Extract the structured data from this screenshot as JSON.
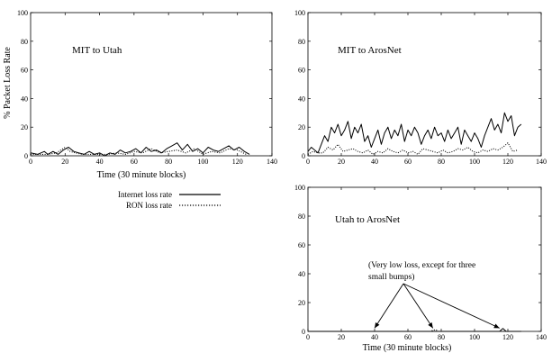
{
  "figure": {
    "legend": {
      "entries": [
        {
          "label": "Internet loss rate",
          "style": "solid"
        },
        {
          "label": "RON loss rate",
          "style": "dotted"
        }
      ]
    }
  },
  "chart_data": [
    {
      "type": "line",
      "title": "MIT to Utah",
      "xlabel": "Time (30 minute blocks)",
      "ylabel": "% Packet Loss Rate",
      "xlim": [
        0,
        140
      ],
      "ylim": [
        0,
        100
      ],
      "xticks": [
        "0",
        "20",
        "40",
        "60",
        "80",
        "100",
        "120",
        "140"
      ],
      "yticks": [
        "0",
        "20",
        "40",
        "60",
        "80",
        "100"
      ],
      "series": [
        {
          "name": "Internet loss rate",
          "style": "solid",
          "x": [
            0,
            4,
            8,
            10,
            13,
            16,
            19,
            22,
            25,
            28,
            31,
            34,
            37,
            40,
            43,
            46,
            49,
            52,
            55,
            58,
            61,
            64,
            67,
            70,
            73,
            76,
            79,
            82,
            85,
            88,
            91,
            94,
            97,
            100,
            103,
            106,
            109,
            112,
            115,
            118,
            121,
            124,
            127
          ],
          "values": [
            2,
            1,
            3,
            1,
            3,
            1,
            4,
            6,
            3,
            2,
            1,
            3,
            1,
            2,
            0,
            2,
            1,
            4,
            2,
            3,
            5,
            2,
            6,
            3,
            4,
            2,
            5,
            7,
            9,
            4,
            8,
            3,
            5,
            2,
            6,
            4,
            3,
            5,
            7,
            4,
            6,
            3,
            1
          ]
        },
        {
          "name": "RON loss rate",
          "style": "dotted",
          "x": [
            0,
            5,
            10,
            15,
            20,
            23,
            26,
            30,
            35,
            40,
            45,
            50,
            55,
            60,
            65,
            70,
            75,
            80,
            85,
            90,
            95,
            100,
            105,
            110,
            115,
            120,
            125
          ],
          "values": [
            1,
            1,
            1,
            2,
            6,
            3,
            2,
            1,
            1,
            1,
            1,
            2,
            1,
            3,
            2,
            5,
            2,
            3,
            4,
            2,
            5,
            1,
            3,
            2,
            5,
            4,
            1
          ]
        }
      ]
    },
    {
      "type": "line",
      "title": "MIT to ArosNet",
      "xlabel": "",
      "ylabel": "",
      "xlim": [
        0,
        140
      ],
      "ylim": [
        0,
        100
      ],
      "xticks": [
        "0",
        "20",
        "40",
        "60",
        "80",
        "100",
        "120",
        "140"
      ],
      "yticks": [
        "0",
        "20",
        "40",
        "60",
        "80",
        "100"
      ],
      "series": [
        {
          "name": "Internet loss rate",
          "style": "solid",
          "x": [
            0,
            2,
            4,
            6,
            8,
            10,
            12,
            14,
            16,
            18,
            20,
            22,
            24,
            26,
            28,
            30,
            32,
            34,
            36,
            38,
            40,
            42,
            44,
            46,
            48,
            50,
            52,
            54,
            56,
            58,
            60,
            62,
            64,
            66,
            68,
            70,
            72,
            74,
            76,
            78,
            80,
            82,
            84,
            86,
            88,
            90,
            92,
            94,
            96,
            98,
            100,
            102,
            104,
            106,
            108,
            110,
            112,
            114,
            116,
            118,
            120,
            122,
            124,
            126,
            128
          ],
          "values": [
            3,
            6,
            4,
            2,
            8,
            14,
            10,
            20,
            16,
            22,
            14,
            18,
            24,
            12,
            20,
            16,
            22,
            10,
            14,
            6,
            12,
            18,
            8,
            16,
            20,
            12,
            18,
            14,
            22,
            10,
            18,
            14,
            20,
            16,
            8,
            14,
            18,
            12,
            20,
            14,
            16,
            10,
            18,
            12,
            16,
            20,
            8,
            18,
            14,
            10,
            16,
            12,
            6,
            14,
            20,
            26,
            18,
            22,
            16,
            30,
            24,
            28,
            14,
            20,
            22
          ]
        },
        {
          "name": "RON loss rate",
          "style": "dotted",
          "x": [
            0,
            3,
            6,
            9,
            12,
            15,
            18,
            21,
            24,
            27,
            30,
            33,
            36,
            39,
            42,
            45,
            48,
            51,
            54,
            57,
            60,
            63,
            66,
            69,
            72,
            75,
            78,
            81,
            84,
            87,
            90,
            93,
            96,
            99,
            102,
            105,
            108,
            111,
            114,
            117,
            120,
            123,
            126
          ],
          "values": [
            1,
            3,
            2,
            2,
            6,
            4,
            8,
            3,
            4,
            5,
            3,
            2,
            4,
            1,
            3,
            2,
            5,
            3,
            2,
            4,
            2,
            3,
            1,
            5,
            4,
            3,
            2,
            4,
            2,
            3,
            5,
            4,
            6,
            3,
            2,
            4,
            3,
            5,
            4,
            6,
            9,
            3,
            4
          ]
        }
      ]
    },
    {
      "type": "line",
      "title": "Utah to ArosNet",
      "xlabel": "Time (30 minute blocks)",
      "ylabel": "",
      "xlim": [
        0,
        140
      ],
      "ylim": [
        0,
        100
      ],
      "xticks": [
        "0",
        "20",
        "40",
        "60",
        "80",
        "100",
        "120",
        "140"
      ],
      "yticks": [
        "0",
        "20",
        "40",
        "60",
        "80",
        "100"
      ],
      "annotation": {
        "lines": [
          "(Very low loss, except for three",
          "small bumps)"
        ],
        "arrow_targets": [
          [
            40,
            1
          ],
          [
            75,
            1
          ],
          [
            115,
            1
          ]
        ]
      },
      "series": [
        {
          "name": "Internet loss rate",
          "style": "solid",
          "x": [
            0,
            115,
            116,
            117,
            118,
            119,
            128
          ],
          "values": [
            0,
            0,
            1,
            2,
            1,
            0,
            0
          ]
        },
        {
          "name": "RON loss rate",
          "style": "dotted",
          "x": [
            0,
            74,
            75,
            76,
            77,
            78,
            128
          ],
          "values": [
            0,
            0,
            1,
            1,
            1,
            0,
            0
          ]
        }
      ]
    }
  ]
}
